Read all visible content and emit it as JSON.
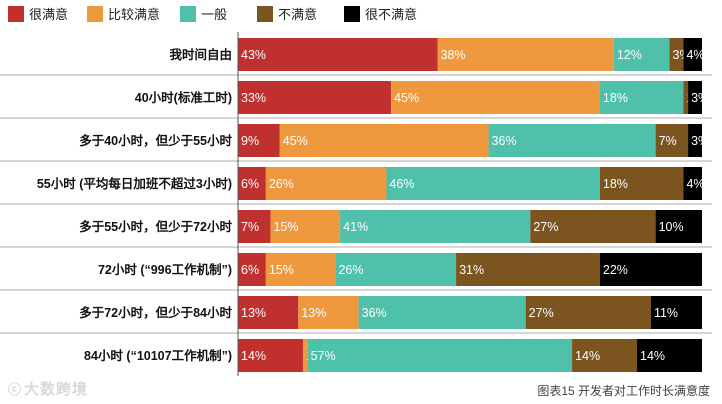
{
  "chart_data": {
    "type": "bar",
    "orientation": "horizontal",
    "stacked": true,
    "unit": "%",
    "legend_position": "top-left",
    "categories": [
      "我时间自由",
      "40小时(标准工时)",
      "多于40小时，但少于55小时",
      "55小时 (平均每日加班不超过3小时)",
      "多于55小时，但少于72小时",
      "72小时 (“996工作机制”)",
      "多于72小时，但少于84小时",
      "84小时 (“10107工作机制”)"
    ],
    "series": [
      {
        "name": "很满意",
        "color": "#c0302f",
        "values": [
          43,
          33,
          9,
          6,
          7,
          6,
          13,
          14
        ]
      },
      {
        "name": "比较满意",
        "color": "#ef993e",
        "values": [
          38,
          45,
          45,
          26,
          15,
          15,
          13,
          1
        ]
      },
      {
        "name": "一般",
        "color": "#4fc0a9",
        "values": [
          12,
          18,
          36,
          46,
          41,
          26,
          36,
          57
        ]
      },
      {
        "name": "不满意",
        "color": "#7b5420",
        "values": [
          3,
          1,
          7,
          18,
          27,
          31,
          27,
          14
        ]
      },
      {
        "name": "很不满意",
        "color": "#000000",
        "values": [
          4,
          3,
          3,
          4,
          10,
          22,
          11,
          14
        ]
      }
    ],
    "xlim": [
      0,
      100
    ]
  },
  "footer": {
    "logo_mark": "ⓒ",
    "logo_text": "大数跨境",
    "caption": "图表15 开发者对工作时长满意度"
  }
}
